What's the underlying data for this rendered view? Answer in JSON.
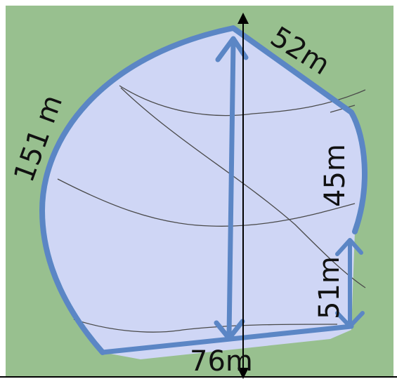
{
  "diagram": {
    "colors": {
      "background": "#98c08f",
      "plot_fill": "#cfd6f5",
      "boundary_stroke": "#5b86c5",
      "measure_line": "#000000",
      "contour": "#4a4a4a"
    },
    "labels": {
      "top_right_edge": "52m",
      "left_edge": "151 m",
      "right_upper_edge": "45m",
      "right_lower_edge": "51m",
      "bottom_edge": "76m"
    }
  }
}
